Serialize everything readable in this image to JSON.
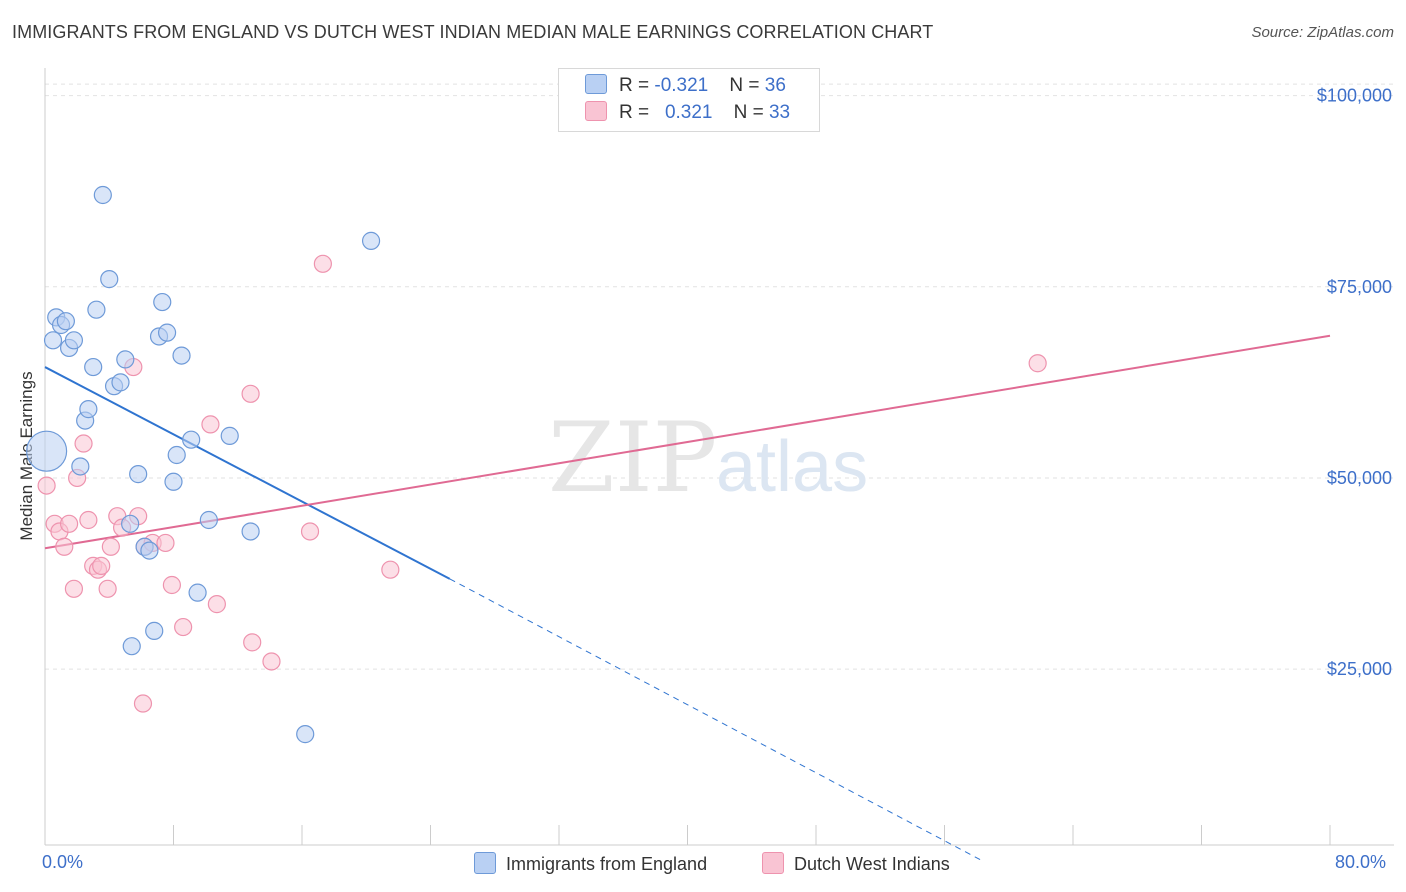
{
  "header": {
    "title": "IMMIGRANTS FROM ENGLAND VS DUTCH WEST INDIAN MEDIAN MALE EARNINGS CORRELATION CHART",
    "source": "Source: ZipAtlas.com"
  },
  "watermark": {
    "zip": "ZIP",
    "atlas": "atlas"
  },
  "legend": {
    "series1": {
      "r_label": "R = ",
      "r_value": "-0.321",
      "n_label": "N = ",
      "n_value": "36"
    },
    "series2": {
      "r_label": "R = ",
      "r_value": "0.321",
      "n_label": "N = ",
      "n_value": "33"
    }
  },
  "colors": {
    "blue_fill": "#b9d0f3",
    "blue_stroke": "#6e9ad8",
    "blue_line": "#2f74d0",
    "pink_fill": "#f9c4d3",
    "pink_stroke": "#ee93ae",
    "pink_line": "#e06a93",
    "grid": "#e2e2e2",
    "tick_label": "#3d6fc9"
  },
  "chart_data": {
    "type": "scatter",
    "title": "IMMIGRANTS FROM ENGLAND VS DUTCH WEST INDIAN MEDIAN MALE EARNINGS CORRELATION CHART",
    "xlabel": "",
    "ylabel": "Median Male Earnings",
    "xlim": [
      0,
      80
    ],
    "ylim": [
      2000,
      104000
    ],
    "x_tick_labels": [
      "0.0%",
      "80.0%"
    ],
    "y_ticks": [
      25000,
      50000,
      75000,
      100000
    ],
    "y_tick_labels": [
      "$25,000",
      "$50,000",
      "$75,000",
      "$100,000"
    ],
    "grid": true,
    "series": [
      {
        "name": "Immigrants from England",
        "color": "blue",
        "points": [
          [
            0.1,
            53500,
            3
          ],
          [
            0.5,
            68000,
            1
          ],
          [
            0.7,
            71000,
            1
          ],
          [
            1.0,
            70000,
            1
          ],
          [
            1.3,
            70500,
            1
          ],
          [
            1.5,
            67000,
            1
          ],
          [
            1.8,
            68000,
            1
          ],
          [
            2.2,
            51500,
            1
          ],
          [
            2.5,
            57500,
            1
          ],
          [
            2.7,
            59000,
            1
          ],
          [
            3.0,
            64500,
            1
          ],
          [
            3.2,
            72000,
            1
          ],
          [
            3.6,
            87000,
            1
          ],
          [
            4.0,
            76000,
            1
          ],
          [
            4.3,
            62000,
            1
          ],
          [
            4.7,
            62500,
            1
          ],
          [
            5.0,
            65500,
            1
          ],
          [
            5.3,
            44000,
            1
          ],
          [
            5.8,
            50500,
            1
          ],
          [
            6.2,
            41000,
            1
          ],
          [
            6.5,
            40500,
            1
          ],
          [
            6.8,
            30000,
            1
          ],
          [
            7.1,
            68500,
            1
          ],
          [
            7.3,
            73000,
            1
          ],
          [
            7.6,
            69000,
            1
          ],
          [
            8.0,
            49500,
            1
          ],
          [
            8.2,
            53000,
            1
          ],
          [
            8.5,
            66000,
            1
          ],
          [
            9.1,
            55000,
            1
          ],
          [
            9.5,
            35000,
            1
          ],
          [
            10.2,
            44500,
            1
          ],
          [
            11.5,
            55500,
            1
          ],
          [
            12.8,
            43000,
            1
          ],
          [
            5.4,
            28000,
            1
          ],
          [
            16.2,
            16500,
            1
          ],
          [
            20.3,
            81000,
            1
          ]
        ],
        "trend": {
          "x0": 0,
          "y0": 64500,
          "x1": 25.2,
          "y1": 36800,
          "dash_x1": 58.3,
          "dash_y1": 0
        }
      },
      {
        "name": "Dutch West Indians",
        "color": "pink",
        "points": [
          [
            0.1,
            49000,
            1
          ],
          [
            0.6,
            44000,
            1
          ],
          [
            0.9,
            43000,
            1
          ],
          [
            1.2,
            41000,
            1
          ],
          [
            1.5,
            44000,
            1
          ],
          [
            1.8,
            35500,
            1
          ],
          [
            2.0,
            50000,
            1
          ],
          [
            2.4,
            54500,
            1
          ],
          [
            2.7,
            44500,
            1
          ],
          [
            3.0,
            38500,
            1
          ],
          [
            3.3,
            38000,
            1
          ],
          [
            3.5,
            38500,
            1
          ],
          [
            3.9,
            35500,
            1
          ],
          [
            4.1,
            41000,
            1
          ],
          [
            4.5,
            45000,
            1
          ],
          [
            4.8,
            43500,
            1
          ],
          [
            5.5,
            64500,
            1
          ],
          [
            5.8,
            45000,
            1
          ],
          [
            6.2,
            41000,
            1
          ],
          [
            6.1,
            20500,
            1
          ],
          [
            6.7,
            41500,
            1
          ],
          [
            7.5,
            41500,
            1
          ],
          [
            7.9,
            36000,
            1
          ],
          [
            8.6,
            30500,
            1
          ],
          [
            10.3,
            57000,
            1
          ],
          [
            10.7,
            33500,
            1
          ],
          [
            12.8,
            61000,
            1
          ],
          [
            12.9,
            28500,
            1
          ],
          [
            14.1,
            26000,
            1
          ],
          [
            16.5,
            43000,
            1
          ],
          [
            17.3,
            78000,
            1
          ],
          [
            21.5,
            38000,
            1
          ],
          [
            61.8,
            65000,
            1
          ]
        ],
        "trend": {
          "x0": 0,
          "y0": 40800,
          "x1": 80,
          "y1": 68600
        }
      }
    ]
  },
  "bottom_legend": {
    "item1": "Immigrants from England",
    "item2": "Dutch West Indians"
  },
  "axis": {
    "y_title": "Median Male Earnings",
    "x_min_label": "0.0%",
    "x_max_label": "80.0%"
  }
}
